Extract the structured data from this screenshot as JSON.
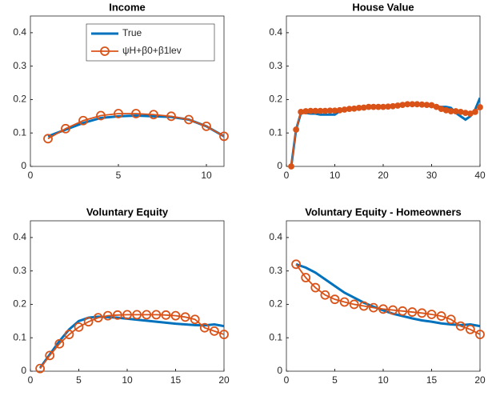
{
  "chart_data": [
    {
      "type": "line",
      "title": "Income",
      "x": [
        1,
        2,
        3,
        4,
        5,
        6,
        7,
        8,
        9,
        10,
        11
      ],
      "series": [
        {
          "name": "True",
          "color": "#0072BD",
          "values": [
            0.09,
            0.11,
            0.13,
            0.145,
            0.15,
            0.152,
            0.15,
            0.148,
            0.14,
            0.12,
            0.09
          ]
        },
        {
          "name": "ψH+β0+β1lev",
          "color": "#D95319",
          "marker": "o",
          "values": [
            0.083,
            0.113,
            0.137,
            0.152,
            0.158,
            0.158,
            0.155,
            0.15,
            0.14,
            0.12,
            0.09
          ]
        }
      ],
      "xlim": [
        0,
        11
      ],
      "xticks": [
        0,
        5,
        10
      ],
      "ylim": [
        0,
        0.45
      ],
      "yticks": [
        0,
        0.1,
        0.2,
        0.3,
        0.4
      ],
      "legend": "top-right"
    },
    {
      "type": "line",
      "title": "House Value",
      "x": [
        1,
        2,
        3,
        4,
        5,
        6,
        7,
        8,
        9,
        10,
        11,
        12,
        13,
        14,
        15,
        16,
        17,
        18,
        19,
        20,
        21,
        22,
        23,
        24,
        25,
        26,
        27,
        28,
        29,
        30,
        31,
        32,
        33,
        34,
        35,
        36,
        37,
        38,
        39,
        40
      ],
      "series": [
        {
          "name": "True",
          "color": "#0072BD",
          "values": [
            0,
            0.11,
            0.16,
            0.16,
            0.158,
            0.158,
            0.155,
            0.155,
            0.155,
            0.155,
            0.165,
            0.168,
            0.17,
            0.172,
            0.175,
            0.175,
            0.178,
            0.18,
            0.178,
            0.178,
            0.18,
            0.182,
            0.183,
            0.185,
            0.185,
            0.185,
            0.185,
            0.183,
            0.182,
            0.18,
            0.178,
            0.178,
            0.178,
            0.175,
            0.16,
            0.15,
            0.14,
            0.15,
            0.17,
            0.205
          ]
        },
        {
          "name": "ψH+β0+β1lev",
          "color": "#D95319",
          "marker": "o",
          "values": [
            0,
            0.11,
            0.163,
            0.165,
            0.166,
            0.166,
            0.166,
            0.166,
            0.167,
            0.167,
            0.168,
            0.17,
            0.172,
            0.173,
            0.175,
            0.176,
            0.178,
            0.178,
            0.178,
            0.178,
            0.179,
            0.18,
            0.182,
            0.184,
            0.186,
            0.186,
            0.186,
            0.185,
            0.184,
            0.183,
            0.178,
            0.172,
            0.168,
            0.165,
            0.165,
            0.163,
            0.16,
            0.158,
            0.163,
            0.177
          ]
        }
      ],
      "xlim": [
        0,
        40
      ],
      "xticks": [
        0,
        10,
        20,
        30,
        40
      ],
      "ylim": [
        0,
        0.45
      ],
      "yticks": [
        0,
        0.1,
        0.2,
        0.3,
        0.4
      ]
    },
    {
      "type": "line",
      "title": "Voluntary Equity",
      "x": [
        1,
        2,
        3,
        4,
        5,
        6,
        7,
        8,
        9,
        10,
        11,
        12,
        13,
        14,
        15,
        16,
        17,
        18,
        19,
        20
      ],
      "series": [
        {
          "name": "True",
          "color": "#0072BD",
          "values": [
            0.01,
            0.05,
            0.09,
            0.125,
            0.15,
            0.16,
            0.163,
            0.162,
            0.16,
            0.157,
            0.154,
            0.151,
            0.148,
            0.145,
            0.142,
            0.14,
            0.138,
            0.137,
            0.14,
            0.135
          ]
        },
        {
          "name": "ψH+β0+β1lev",
          "color": "#D95319",
          "marker": "o",
          "values": [
            0.008,
            0.047,
            0.082,
            0.11,
            0.132,
            0.148,
            0.16,
            0.166,
            0.168,
            0.169,
            0.169,
            0.169,
            0.169,
            0.168,
            0.166,
            0.162,
            0.155,
            0.13,
            0.12,
            0.11
          ]
        }
      ],
      "xlim": [
        0,
        20
      ],
      "xticks": [
        0,
        5,
        10,
        15,
        20
      ],
      "ylim": [
        0,
        0.45
      ],
      "yticks": [
        0,
        0.1,
        0.2,
        0.3,
        0.4
      ]
    },
    {
      "type": "line",
      "title": "Voluntary Equity - Homeowners",
      "x": [
        1,
        2,
        3,
        4,
        5,
        6,
        7,
        8,
        9,
        10,
        11,
        12,
        13,
        14,
        15,
        16,
        17,
        18,
        19,
        20
      ],
      "series": [
        {
          "name": "True",
          "color": "#0072BD",
          "values": [
            0.32,
            0.31,
            0.295,
            0.275,
            0.255,
            0.235,
            0.22,
            0.205,
            0.193,
            0.182,
            0.172,
            0.165,
            0.158,
            0.152,
            0.148,
            0.143,
            0.14,
            0.138,
            0.14,
            0.135
          ]
        },
        {
          "name": "ψH+β0+β1lev",
          "color": "#D95319",
          "marker": "o",
          "values": [
            0.32,
            0.28,
            0.25,
            0.228,
            0.215,
            0.207,
            0.2,
            0.195,
            0.19,
            0.186,
            0.183,
            0.18,
            0.177,
            0.174,
            0.17,
            0.165,
            0.155,
            0.135,
            0.125,
            0.11
          ]
        }
      ],
      "xlim": [
        0,
        20
      ],
      "xticks": [
        0,
        5,
        10,
        15,
        20
      ],
      "ylim": [
        0,
        0.45
      ],
      "yticks": [
        0,
        0.1,
        0.2,
        0.3,
        0.4
      ]
    }
  ]
}
